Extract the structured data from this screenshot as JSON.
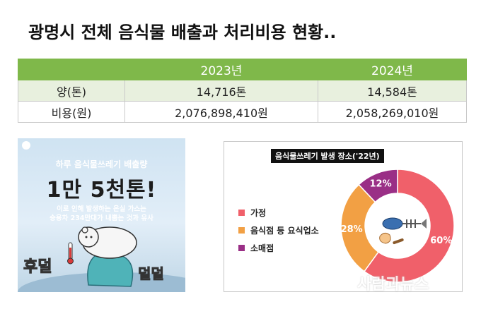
{
  "title": "광명시 전체 음식물 배출과 처리비용 현황..",
  "table": {
    "headers": [
      "",
      "2023년",
      "2024년"
    ],
    "rows": [
      {
        "label": "양(톤)",
        "v2023": "14,716톤",
        "v2024": "14,584톤"
      },
      {
        "label": "비용(원)",
        "v2023": "2,076,898,410원",
        "v2024": "2,058,269,010원"
      }
    ]
  },
  "infographic": {
    "line1": "하루 음식물쓰레기 배출량",
    "big": "1만 5천톤!",
    "line2": "이로 인해 발생하는 온실 가스는",
    "line3": "승용차 234만대가 내뿜는 것과 유사",
    "hot": "후덜",
    "cold": "덜덜"
  },
  "chart_data": {
    "type": "pie",
    "title": "음식물쓰레기 발생 장소('22년)",
    "categories": [
      "가정",
      "음식점 등 요식업소",
      "소매점"
    ],
    "values": [
      60,
      28,
      12
    ],
    "labels": [
      "60%",
      "28%",
      "12%"
    ],
    "colors": [
      "#f0606a",
      "#f2a044",
      "#9a2f86"
    ]
  },
  "watermark": "사람과뉴스"
}
